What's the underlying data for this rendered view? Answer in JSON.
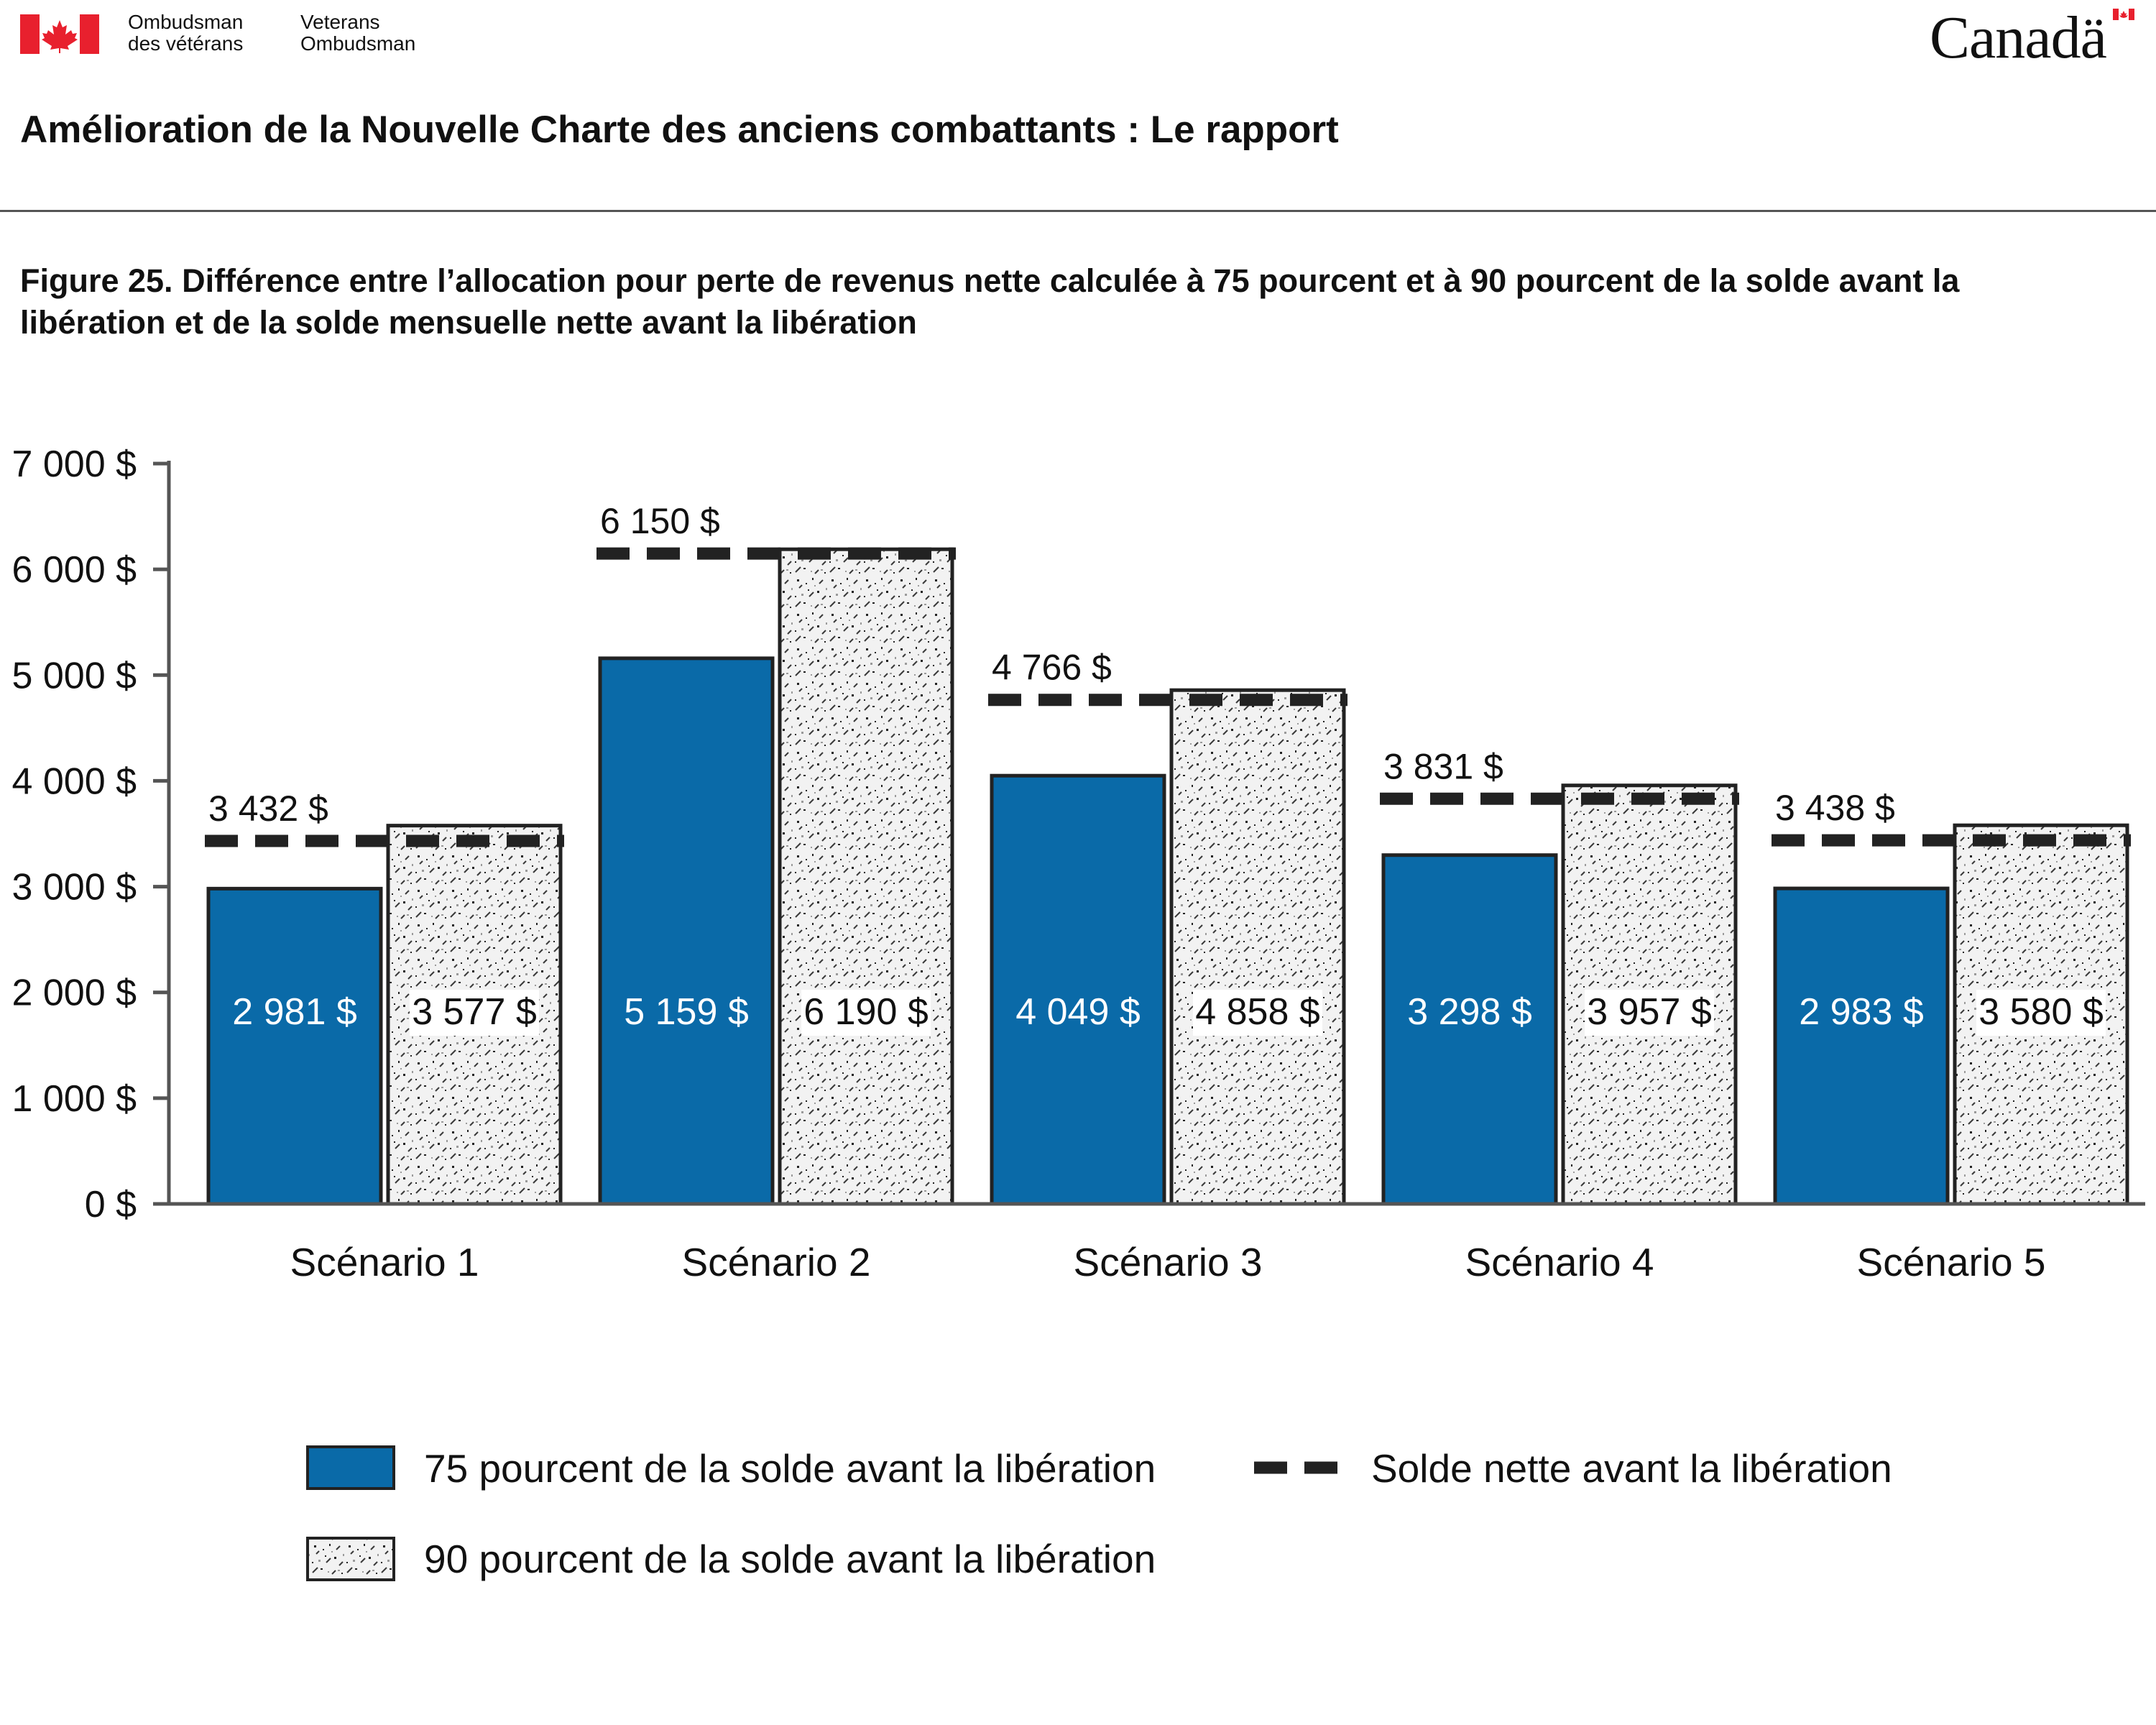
{
  "header": {
    "org_fr_line1": "Ombudsman",
    "org_fr_line2": "des vétérans",
    "org_en_line1": "Veterans",
    "org_en_line2": "Ombudsman",
    "wordmark": "Canadä",
    "icons": [
      "canada-flag-icon",
      "canada-wordmark-flag-icon"
    ]
  },
  "report_title": "Amélioration de la Nouvelle Charte des anciens combattants : Le rapport",
  "figure_title": "Figure 25. Différence entre l’allocation pour perte de revenus nette calculée à 75 pourcent et à 90 pourcent de la solde avant la libération et de la solde mensuelle nette avant la libération",
  "colors": {
    "flag_red": "#e8202e",
    "series_75": "#0a6aa8",
    "series_90_fill": "#f2f2f2",
    "reference_line": "#222222",
    "axis": "#555555"
  },
  "chart_data": {
    "type": "bar",
    "categories": [
      "Scénario 1",
      "Scénario 2",
      "Scénario 3",
      "Scénario 4",
      "Scénario 5"
    ],
    "series": [
      {
        "name": "75 pourcent de la solde avant la libération",
        "values": [
          2981,
          5159,
          4049,
          3298,
          2983
        ],
        "labels": [
          "2 981 $",
          "5 159 $",
          "4 049 $",
          "3 298 $",
          "2 983 $"
        ]
      },
      {
        "name": "90 pourcent de la solde avant la libération",
        "values": [
          3577,
          6190,
          4858,
          3957,
          3580
        ],
        "labels": [
          "3 577 $",
          "6 190 $",
          "4 858 $",
          "3 957 $",
          "3 580 $"
        ]
      }
    ],
    "reference_line": {
      "name": "Solde nette avant la libération",
      "values": [
        3432,
        6150,
        4766,
        3831,
        3438
      ],
      "labels": [
        "3 432 $",
        "6 150 $",
        "4 766 $",
        "3 831 $",
        "3 438 $"
      ]
    },
    "yticks": [
      "0 $",
      "1 000 $",
      "2 000 $",
      "3 000 $",
      "4 000 $",
      "5 000 $",
      "6 000 $",
      "7 000 $"
    ],
    "ylim": [
      0,
      7000
    ],
    "grid": false,
    "legend_position": "bottom"
  }
}
